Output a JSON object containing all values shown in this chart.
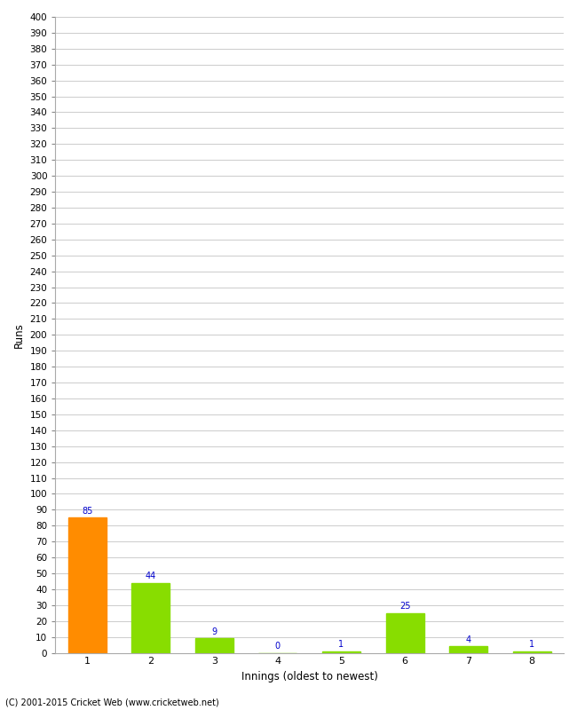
{
  "categories": [
    "1",
    "2",
    "3",
    "4",
    "5",
    "6",
    "7",
    "8"
  ],
  "values": [
    85,
    44,
    9,
    0,
    1,
    25,
    4,
    1
  ],
  "bar_colors": [
    "#ff8c00",
    "#88dd00",
    "#88dd00",
    "#88dd00",
    "#88dd00",
    "#88dd00",
    "#88dd00",
    "#88dd00"
  ],
  "xlabel": "Innings (oldest to newest)",
  "ylabel": "Runs",
  "ylim": [
    0,
    400
  ],
  "ytick_step": 10,
  "annotation_color": "#0000cc",
  "annotation_fontsize": 7,
  "background_color": "#ffffff",
  "grid_color": "#cccccc",
  "footer": "(C) 2001-2015 Cricket Web (www.cricketweb.net)"
}
